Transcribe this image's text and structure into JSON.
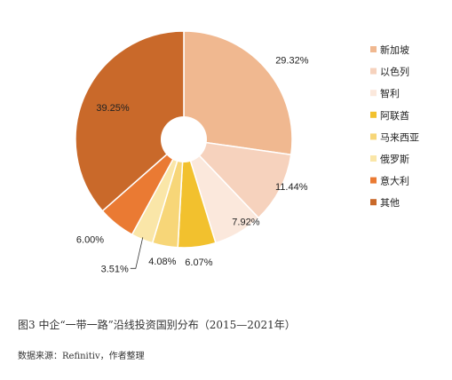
{
  "chart_data": {
    "type": "pie",
    "donut": true,
    "title": "",
    "categories": [
      "新加坡",
      "以色列",
      "智利",
      "阿联酋",
      "马来西亚",
      "俄罗斯",
      "意大利",
      "其他"
    ],
    "values": [
      29.32,
      11.44,
      7.92,
      6.07,
      4.08,
      3.51,
      6.0,
      39.25
    ],
    "value_labels": [
      "29.32%",
      "11.44%",
      "7.92%",
      "6.07%",
      "4.08%",
      "3.51%",
      "6.00%",
      "39.25%"
    ],
    "colors": [
      "#f0b890",
      "#f6d2bd",
      "#fbe8dc",
      "#f2c12e",
      "#f7d678",
      "#fae6a8",
      "#ea7a33",
      "#c9692a"
    ],
    "legend_position": "right"
  },
  "caption": "图3 中企“一带一路”沿线投资国别分布（2015—2021年）",
  "source": "数据来源：Refinitiv，作者整理"
}
